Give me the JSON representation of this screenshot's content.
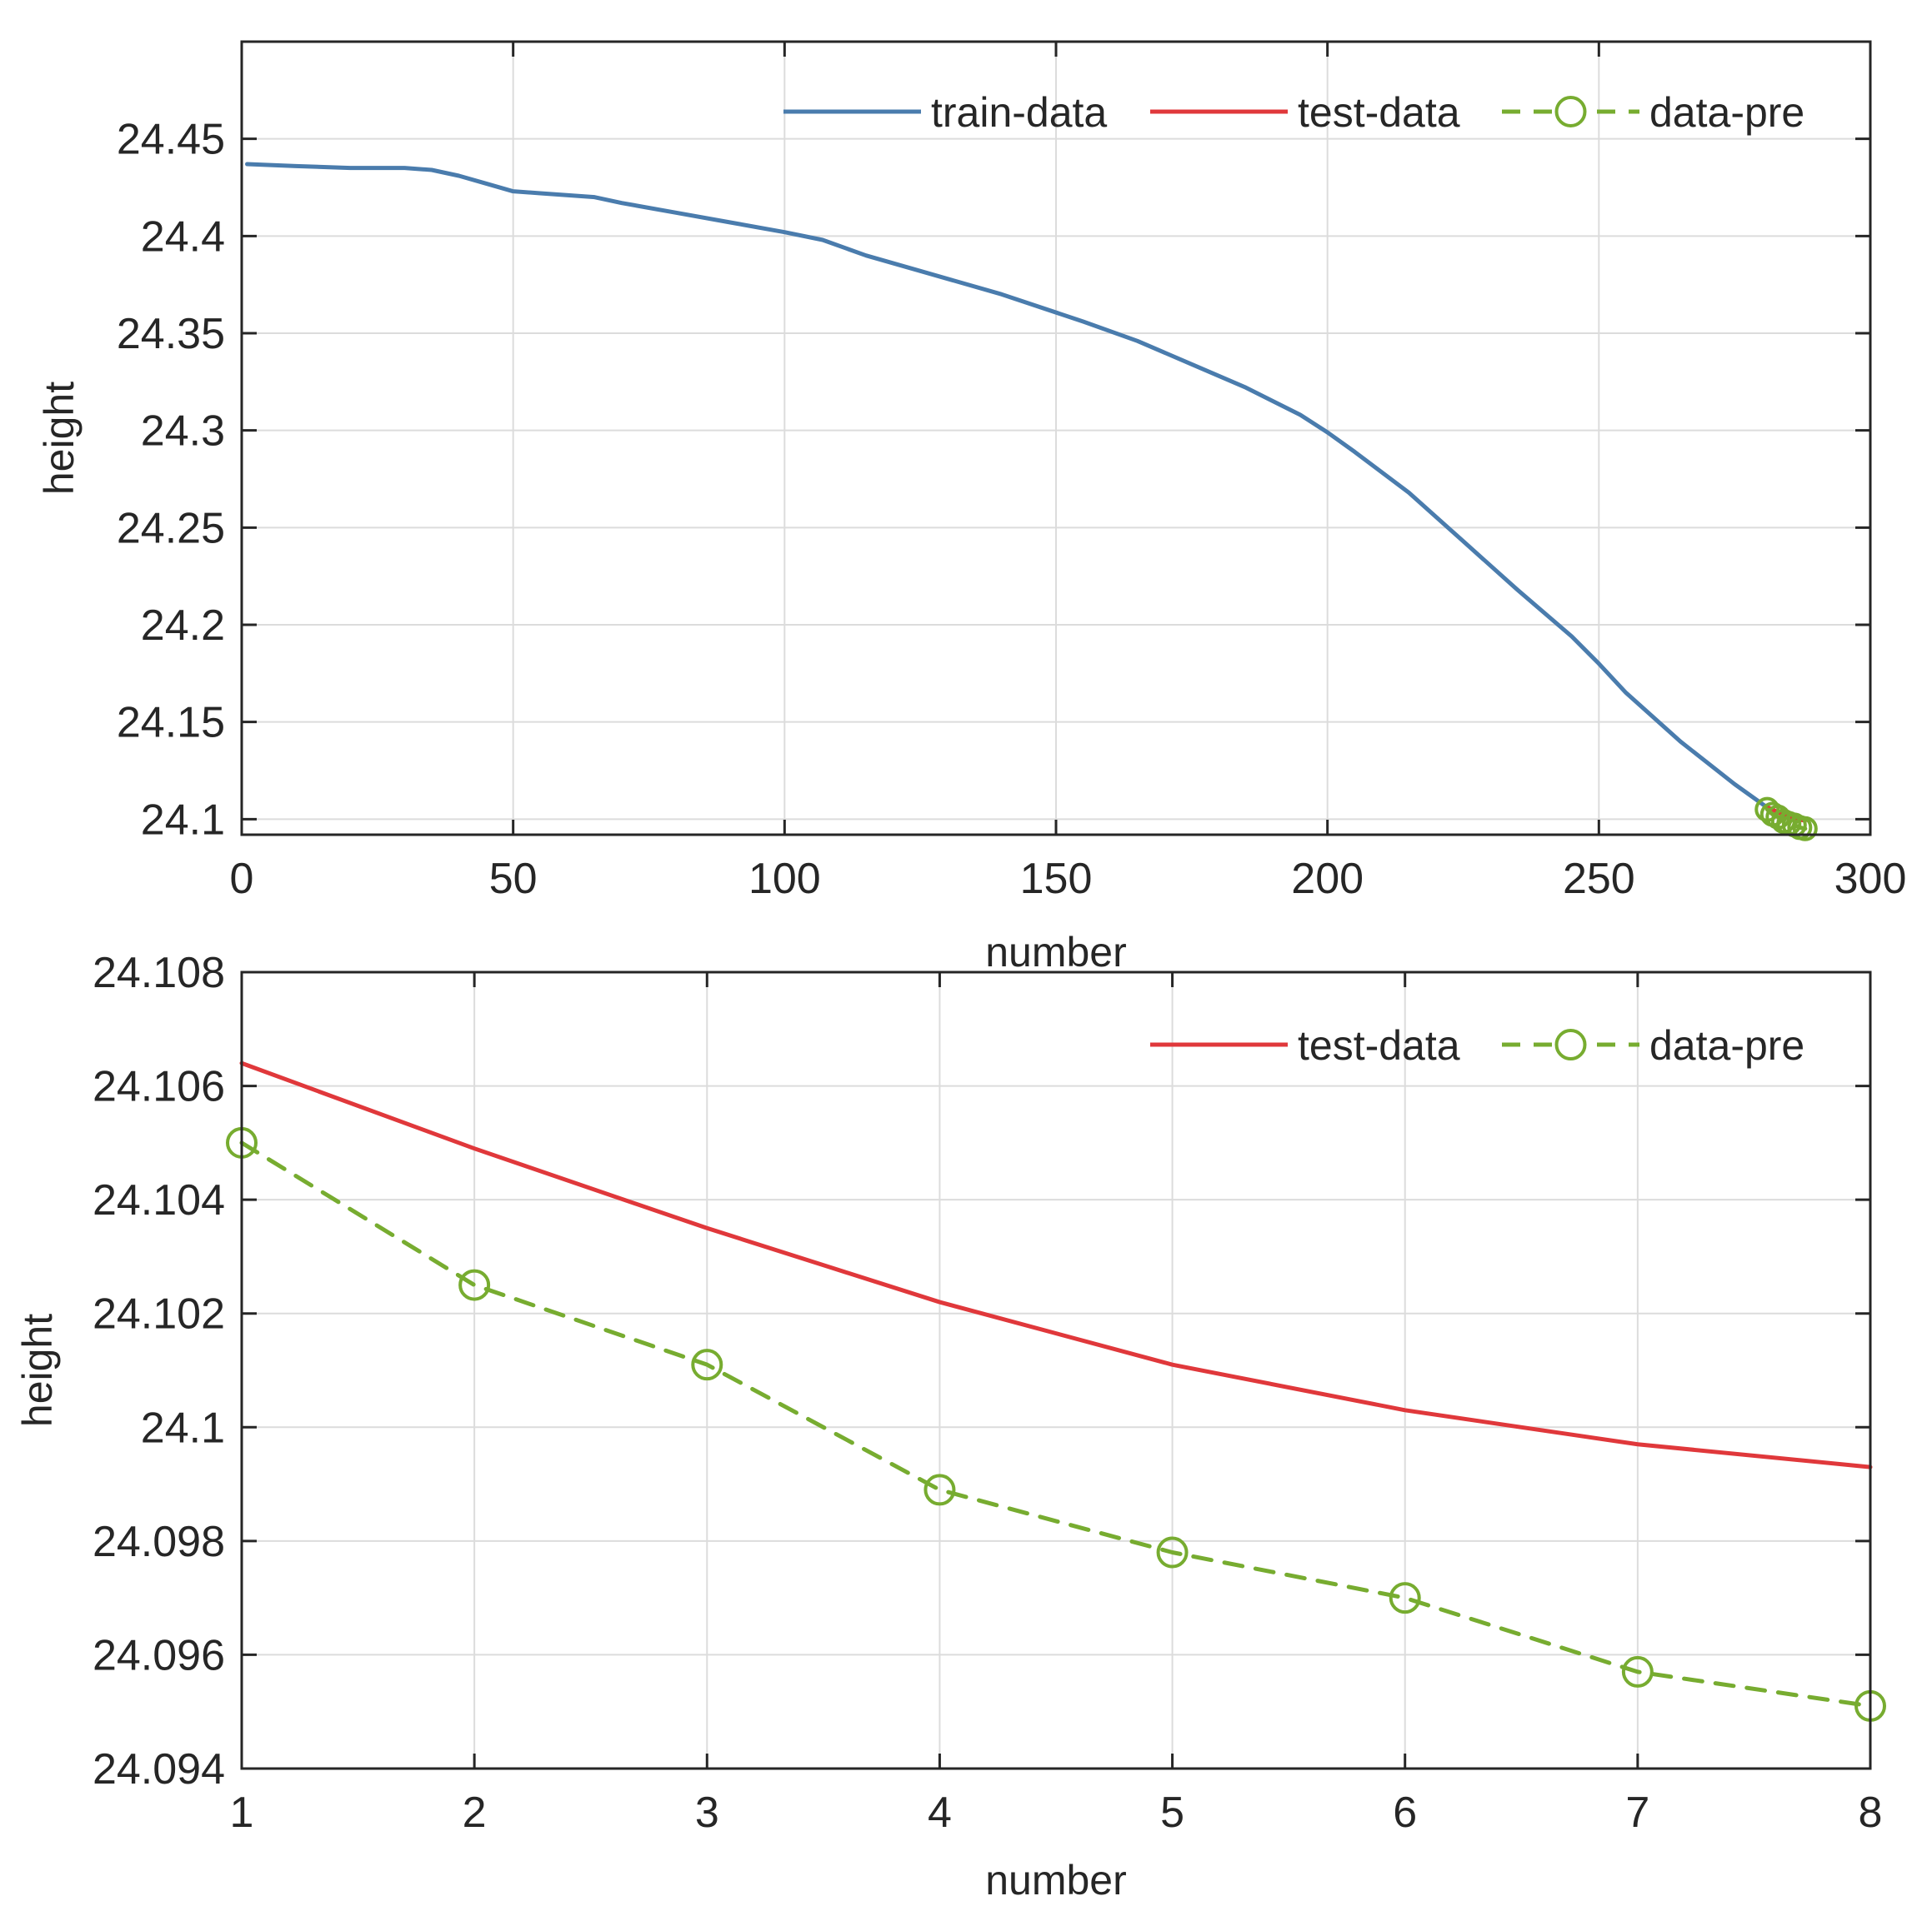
{
  "colors": {
    "train": "#4a7cad",
    "test": "#e0383b",
    "pred": "#77ac30",
    "axis": "#262626",
    "grid": "#dcdcdc"
  },
  "chart_data": [
    {
      "type": "line",
      "xlabel": "number",
      "ylabel": "height",
      "xlim": [
        0,
        300
      ],
      "ylim": [
        24.092,
        24.5
      ],
      "xticks": [
        0,
        50,
        100,
        150,
        200,
        250,
        300
      ],
      "xtick_labels": [
        "0",
        "50",
        "100",
        "150",
        "200",
        "250",
        "300"
      ],
      "yticks": [
        24.1,
        24.15,
        24.2,
        24.25,
        24.3,
        24.35,
        24.4,
        24.45
      ],
      "ytick_labels": [
        "24.1",
        "24.15",
        "24.2",
        "24.25",
        "24.3",
        "24.35",
        "24.4",
        "24.45"
      ],
      "grid": true,
      "legend_position": "top-right",
      "series": [
        {
          "key": "train",
          "name": "train-data",
          "style": "solid",
          "x": [
            1,
            10,
            20,
            30,
            35,
            40,
            45,
            50,
            55,
            65,
            70,
            80,
            90,
            100,
            107,
            115,
            125,
            140,
            155,
            165,
            175,
            185,
            195,
            200,
            205,
            215,
            225,
            235,
            245,
            250,
            255,
            265,
            275,
            281
          ],
          "y": [
            24.437,
            24.436,
            24.435,
            24.435,
            24.434,
            24.431,
            24.427,
            24.423,
            24.422,
            24.42,
            24.417,
            24.412,
            24.407,
            24.402,
            24.398,
            24.39,
            24.382,
            24.37,
            24.356,
            24.346,
            24.334,
            24.322,
            24.308,
            24.299,
            24.289,
            24.268,
            24.243,
            24.218,
            24.194,
            24.18,
            24.165,
            24.14,
            24.118,
            24.106
          ]
        },
        {
          "key": "test",
          "name": "test-data",
          "style": "solid",
          "x": [
            281,
            282,
            283,
            284,
            285,
            286,
            287,
            288
          ],
          "y": [
            24.1064,
            24.1049,
            24.1035,
            24.1022,
            24.1011,
            24.1003,
            24.0997,
            24.0993
          ]
        },
        {
          "key": "pred",
          "name": "data-pre",
          "style": "dashed-circle-markers",
          "x": [
            281,
            282,
            283,
            284,
            285,
            286,
            287,
            288
          ],
          "y": [
            24.105,
            24.1025,
            24.1011,
            24.0989,
            24.0978,
            24.097,
            24.0957,
            24.0951
          ]
        }
      ]
    },
    {
      "type": "line",
      "xlabel": "number",
      "ylabel": "height",
      "xlim": [
        1,
        8
      ],
      "ylim": [
        24.094,
        24.108
      ],
      "xticks": [
        1,
        2,
        3,
        4,
        5,
        6,
        7,
        8
      ],
      "xtick_labels": [
        "1",
        "2",
        "3",
        "4",
        "5",
        "6",
        "7",
        "8"
      ],
      "yticks": [
        24.094,
        24.096,
        24.098,
        24.1,
        24.102,
        24.104,
        24.106,
        24.108
      ],
      "ytick_labels": [
        "24.094",
        "24.096",
        "24.098",
        "24.1",
        "24.102",
        "24.104",
        "24.106",
        "24.108"
      ],
      "grid": true,
      "legend_position": "top-right",
      "series": [
        {
          "key": "test",
          "name": "test-data",
          "style": "solid",
          "x": [
            1,
            2,
            3,
            4,
            5,
            6,
            7,
            8
          ],
          "y": [
            24.1064,
            24.1049,
            24.1035,
            24.1022,
            24.1011,
            24.1003,
            24.0997,
            24.0993
          ]
        },
        {
          "key": "pred",
          "name": "data-pre",
          "style": "dashed-circle-markers",
          "x": [
            1,
            2,
            3,
            4,
            5,
            6,
            7,
            8
          ],
          "y": [
            24.105,
            24.1025,
            24.1011,
            24.0989,
            24.0978,
            24.097,
            24.0957,
            24.0951
          ]
        }
      ]
    }
  ]
}
